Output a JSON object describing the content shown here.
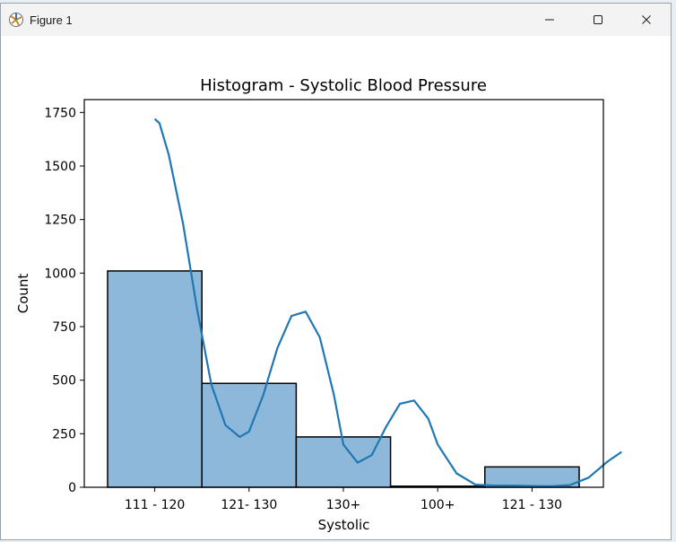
{
  "window": {
    "title": "Figure 1",
    "icon": "matplotlib-figure-icon",
    "controls": [
      "minimize-icon",
      "maximize-icon",
      "close-icon"
    ]
  },
  "chart_data": {
    "type": "bar",
    "title": "Histogram - Systolic Blood Pressure",
    "xlabel": "Systolic",
    "ylabel": "Count",
    "categories": [
      "111 - 120",
      "121- 130",
      "130+",
      "100+",
      "121 - 130"
    ],
    "values": [
      1010,
      485,
      235,
      5,
      95
    ],
    "ylim": [
      0,
      1810
    ],
    "yticks": [
      0,
      250,
      500,
      750,
      1000,
      1250,
      1500,
      1750
    ],
    "grid": false,
    "bar_color": "#8db8da",
    "bar_edge_color": "#000000",
    "kde": {
      "color": "#1f77b4",
      "x": [
        0.0,
        0.05,
        0.15,
        0.3,
        0.45,
        0.6,
        0.75,
        0.9,
        1.0,
        1.15,
        1.3,
        1.45,
        1.6,
        1.75,
        1.9,
        2.0,
        2.15,
        2.3,
        2.45,
        2.6,
        2.75,
        2.9,
        3.0,
        3.2,
        3.4,
        3.6,
        3.8,
        4.0,
        4.2,
        4.4,
        4.6,
        4.8,
        4.95
      ],
      "y": [
        1720,
        1700,
        1550,
        1230,
        830,
        480,
        290,
        235,
        260,
        430,
        650,
        800,
        820,
        700,
        430,
        200,
        115,
        150,
        280,
        390,
        405,
        320,
        200,
        65,
        12,
        8,
        8,
        6,
        5,
        10,
        45,
        120,
        165
      ]
    }
  }
}
